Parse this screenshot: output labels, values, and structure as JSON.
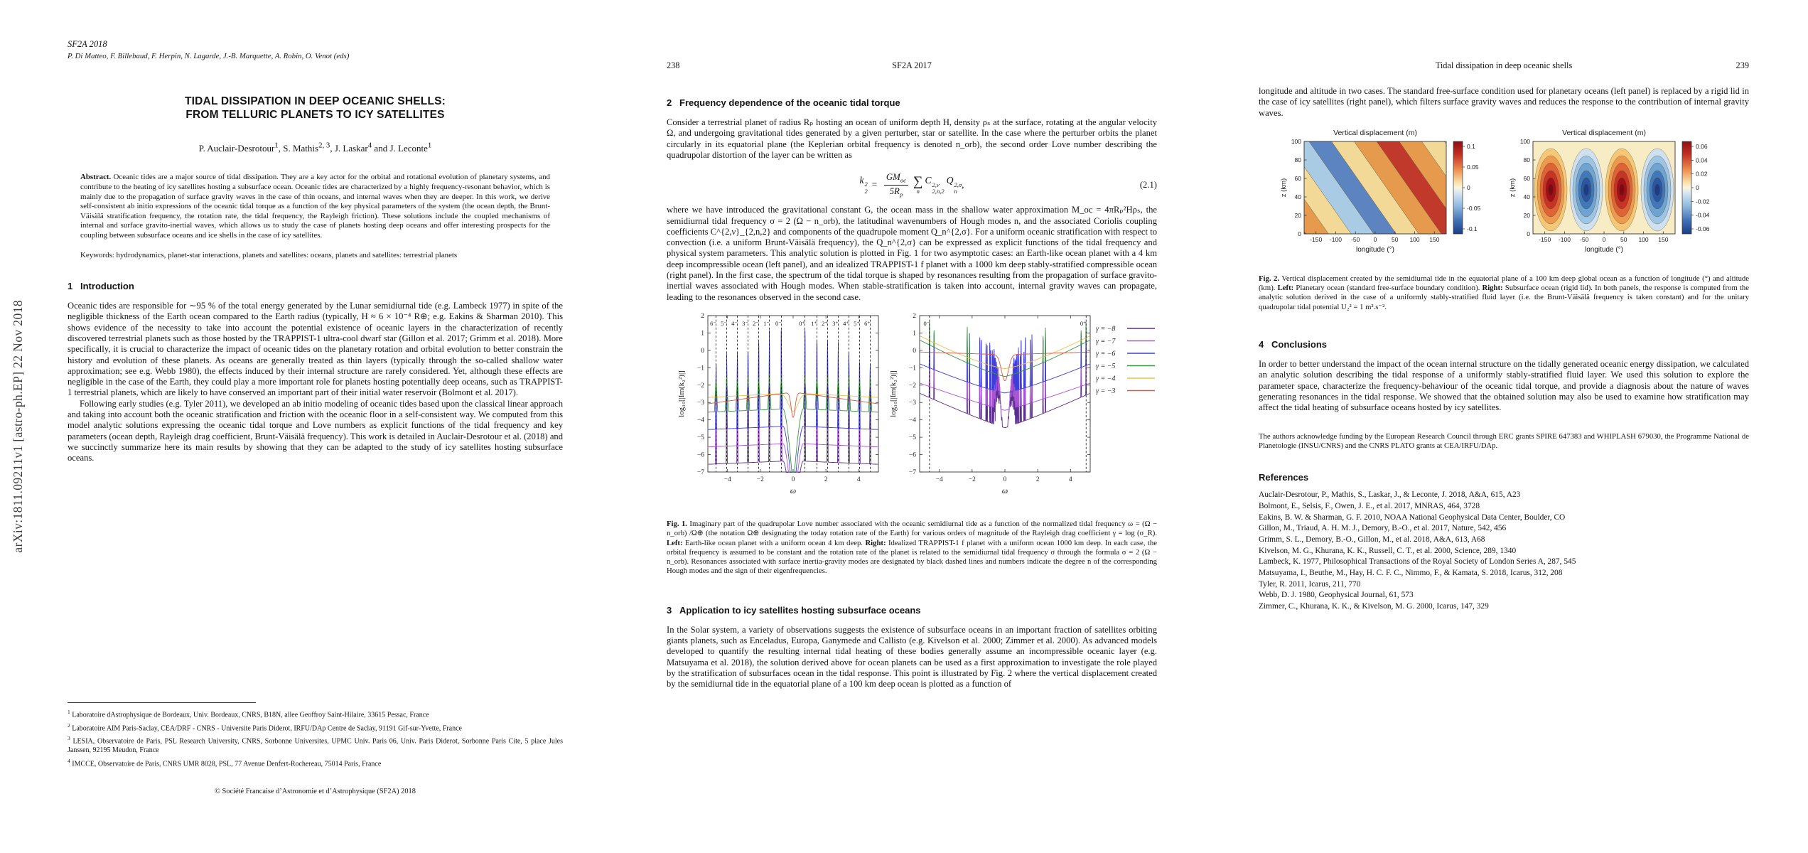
{
  "arxiv_stamp": "arXiv:1811.09211v1  [astro-ph.EP]  22 Nov 2018",
  "page1": {
    "proceedings_line1": "SF2A 2018",
    "proceedings_line2": "P. Di Matteo, F. Billebaud, F. Herpin, N. Lagarde, J.-B. Marquette, A. Robin, O. Venot (eds)",
    "title_line1": "TIDAL DISSIPATION IN DEEP OCEANIC SHELLS:",
    "title_line2": "FROM TELLURIC PLANETS TO ICY SATELLITES",
    "authors_parts": [
      {
        "t": "P. Auclair-Desrotour",
        "s": "1"
      },
      {
        "t": ", S. Mathis",
        "s": "2, 3"
      },
      {
        "t": ", J. Laskar",
        "s": "4"
      },
      {
        "t": " and J. Leconte",
        "s": "1"
      }
    ],
    "abstract_label": "Abstract.",
    "abstract_text": "Oceanic tides are a major source of tidal dissipation. They are a key actor for the orbital and rotational evolution of planetary systems, and contribute to the heating of icy satellites hosting a subsurface ocean. Oceanic tides are characterized by a highly frequency-resonant behavior, which is mainly due to the propagation of surface gravity waves in the case of thin oceans, and internal waves when they are deeper. In this work, we derive self-consistent ab initio expressions of the oceanic tidal torque as a function of the key physical parameters of the system (the ocean depth, the Brunt-Väisälä stratification frequency, the rotation rate, the tidal frequency, the Rayleigh friction). These solutions include the coupled mechanisms of internal and surface gravito-inertial waves, which allows us to study the case of planets hosting deep oceans and offer interesting prospects for the coupling between subsurface oceans and ice shells in the case of icy satellites.",
    "keywords_label": "Keywords:",
    "keywords_text": "hydrodynamics, planet-star interactions, planets and satellites: oceans, planets and satellites: terrestrial planets",
    "section1": {
      "num": "1",
      "text": "Introduction"
    },
    "intro_para1": "Oceanic tides are responsible for ∼95 % of the total energy generated by the Lunar semidiurnal tide (e.g. Lambeck 1977) in spite of the negligible thickness of the Earth ocean compared to the Earth radius (typically, H ≈ 6 × 10⁻⁴ R⊕; e.g. Eakins & Sharman 2010). This shows evidence of the necessity to take into account the potential existence of oceanic layers in the characterization of recently discovered terrestrial planets such as those hosted by the TRAPPIST-1 ultra-cool dwarf star (Gillon et al. 2017; Grimm et al. 2018). More specifically, it is crucial to characterize the impact of oceanic tides on the planetary rotation and orbital evolution to better constrain the history and evolution of these planets. As oceans are generally treated as thin layers (typically through the so-called shallow water approximation; see e.g. Webb 1980), the effects induced by their internal structure are rarely considered. Yet, although these effects are negligible in the case of the Earth, they could play a more important role for planets hosting potentially deep oceans, such as TRAPPIST-1 terrestrial planets, which are likely to have conserved an important part of their initial water reservoir (Bolmont et al. 2017).",
    "intro_para2": "Following early studies (e.g. Tyler 2011), we developed an ab initio modeling of oceanic tides based upon the classical linear approach and taking into account both the oceanic stratification and friction with the oceanic floor in a self-consistent way. We computed from this model analytic solutions expressing the oceanic tidal torque and Love numbers as explicit functions of the tidal frequency and key parameters (ocean depth, Rayleigh drag coefficient, Brunt-Väisälä frequency). This work is detailed in Auclair-Desrotour et al. (2018) and we succinctly summarize here its main results by showing that they can be adapted to the study of icy satellites hosting subsurface oceans.",
    "footnotes": [
      {
        "num": "1",
        "text": "Laboratoire dAstrophysique de Bordeaux, Univ. Bordeaux, CNRS, B18N, allee Geoffroy Saint-Hilaire, 33615 Pessac, France"
      },
      {
        "num": "2",
        "text": "Laboratoire AIM Paris-Saclay, CEA/DRF - CNRS - Universite Paris Diderot, IRFU/DAp Centre de Saclay, 91191 Gif-sur-Yvette, France"
      },
      {
        "num": "3",
        "text": "LESIA, Observatoire de Paris, PSL Research University, CNRS, Sorbonne Universites, UPMC Univ. Paris 06, Univ. Paris Diderot, Sorbonne Paris Cite, 5 place Jules Janssen, 92195 Meudon, France"
      },
      {
        "num": "4",
        "text": "IMCCE, Observatoire de Paris, CNRS UMR 8028, PSL, 77 Avenue Denfert-Rochereau, 75014 Paris, France"
      }
    ],
    "copyright": "© Société Francaise d’Astronomie et d’Astrophysique (SF2A) 2018"
  },
  "page2": {
    "page_number": "238",
    "running_head": "SF2A 2017",
    "section2": {
      "num": "2",
      "text": "Frequency dependence of the oceanic tidal torque"
    },
    "para1": "Consider a terrestrial planet of radius Rₚ hosting an ocean of uniform depth H, density ρₛ at the surface, rotating at the angular velocity Ω, and undergoing gravitational tides generated by a given perturber, star or satellite. In the case where the perturber orbits the planet circularly in its equatorial plane (the Keplerian orbital frequency is denoted n_orb), the second order Love number describing the quadrupolar distortion of the layer can be written as",
    "equation": {
      "k": "k",
      "k_sup": "2",
      "k_sub": "2",
      "equals": "=",
      "num_main": "GM",
      "num_sub": "oc",
      "den_main": "5R",
      "den_sub": "p",
      "sigma": "∑",
      "sigma_under": "n",
      "C": "C",
      "C_sup": "2,ν",
      "C_sub": "2,n,2",
      "Q": "Q",
      "Q_sup": "2,σ",
      "Q_sub": "n",
      "tail": ",",
      "number": "(2.1)"
    },
    "para2": "where we have introduced the gravitational constant G, the ocean mass in the shallow water approximation M_oc = 4πRₚ²Hρₛ, the semidiurnal tidal frequency σ = 2 (Ω − n_orb), the latitudinal wavenumbers of Hough modes n, and the associated Coriolis coupling coefficients C^{2,ν}_{2,n,2} and components of the quadrupole moment Q_n^{2,σ}. For a uniform oceanic stratification with respect to convection (i.e. a uniform Brunt-Väisälä frequency), the Q_n^{2,σ} can be expressed as explicit functions of the tidal frequency and physical system parameters. This analytic solution is plotted in Fig. 1 for two asymptotic cases: an Earth-like ocean planet with a 4 km deep incompressible ocean (left panel), and an idealized TRAPPIST-1 f planet with a 1000 km deep stably-stratified compressible ocean (right panel). In the first case, the spectrum of the tidal torque is shaped by resonances resulting from the propagation of surface gravito-inertial waves associated with Hough modes. When stable-stratification is taken into account, internal gravity waves can propagate, leading to the resonances observed in the second case.",
    "fig1_caption": {
      "label": "Fig. 1.",
      "p1": "Imaginary part of the quadrupolar Love number associated with the oceanic semidiurnal tide as a function of the normalized tidal frequency ω = (Ω − n_orb) /Ω⊕ (the notation Ω⊕ designating the today rotation rate of the Earth) for various orders of magnitude of the Rayleigh drag coefficient γ = log (σ_R). ",
      "left_label": "Left:",
      "p2": " Earth-like ocean planet with a uniform ocean 4 km deep. ",
      "right_label": "Right:",
      "p3": " Idealized TRAPPIST-1 f planet with a uniform ocean 1000 km deep. In each case, the orbital frequency is assumed to be constant and the rotation rate of the planet is related to the semidiurnal tidal frequency σ through the formula σ = 2 (Ω − n_orb). Resonances associated with surface inertia-gravity modes are designated by black dashed lines and numbers indicate the degree n of the corresponding Hough modes and the sign of their eigenfrequencies."
    },
    "section3": {
      "num": "3",
      "text": "Application to icy satellites hosting subsurface oceans"
    },
    "para3": "In the Solar system, a variety of observations suggests the existence of subsurface oceans in an important fraction of satellites orbiting giants planets, such as Enceladus, Europa, Ganymede and Callisto (e.g. Kivelson et al. 2000; Zimmer et al. 2000). As advanced models developed to quantify the resulting internal tidal heating of these bodies generally assume an incompressible oceanic layer (e.g. Matsuyama et al. 2018), the solution derived above for ocean planets can be used as a first approximation to investigate the role played by the stratification of subsurfaces ocean in the tidal response. This point is illustrated by Fig. 2 where the vertical displacement created by the semidiurnal tide in the equatorial plane of a 100 km deep ocean is plotted as a function of"
  },
  "page3": {
    "running_head": "Tidal dissipation in deep oceanic shells",
    "page_number": "239",
    "para1": "longitude and altitude in two cases. The standard free-surface condition used for planetary oceans (left panel) is replaced by a rigid lid in the case of icy satellites (right panel), which filters surface gravity waves and reduces the response to the contribution of internal gravity waves.",
    "fig2_caption": {
      "label": "Fig. 2.",
      "p1": "Vertical displacement created by the semidiurnal tide in the equatorial plane of a 100 km deep global ocean as a function of longitude (°) and altitude (km). ",
      "left_label": "Left:",
      "p2": " Planetary ocean (standard free-surface boundary condition). ",
      "right_label": "Right:",
      "p3": " Subsurface ocean (rigid lid). In both panels, the response is computed from the analytic solution derived in the case of a uniformly stably-stratified fluid layer (i.e. the Brunt-Väisälä frequency is taken constant) and for the unitary quadrupolar tidal potential U₂² = 1 m².s⁻²."
    },
    "section4": {
      "num": "4",
      "text": "Conclusions"
    },
    "conclusions": "In order to better understand the impact of the ocean internal structure on the tidally generated oceanic energy dissipation, we calculated an analytic solution describing the tidal response of a uniformly stably-stratified fluid layer. We used this solution to explore the parameter space, characterize the frequency-behaviour of the oceanic tidal torque, and provide a diagnosis about the nature of waves generating resonances in the tidal response. We showed that the obtained solution may also be used to examine how stratification may affect the tidal heating of subsurface oceans hosted by icy satellites.",
    "acknowledgments": "The authors acknowledge funding by the European Research Council through ERC grants SPIRE 647383 and WHIPLASH 679030, the Programme National de Planetologie (INSU/CNRS) and the CNRS PLATO grants at CEA/IRFU/DAp.",
    "references_heading": "References",
    "references": [
      "Auclair-Desrotour, P., Mathis, S., Laskar, J., & Leconte, J. 2018, A&A, 615, A23",
      "Bolmont, E., Selsis, F., Owen, J. E., et al. 2017, MNRAS, 464, 3728",
      "Eakins, B. W. & Sharman, G. F. 2010, NOAA National Geophysical Data Center, Boulder, CO",
      "Gillon, M., Triaud, A. H. M. J., Demory, B.-O., et al. 2017, Nature, 542, 456",
      "Grimm, S. L., Demory, B.-O., Gillon, M., et al. 2018, A&A, 613, A68",
      "Kivelson, M. G., Khurana, K. K., Russell, C. T., et al. 2000, Science, 289, 1340",
      "Lambeck, K. 1977, Philosophical Transactions of the Royal Society of London Series A, 287, 545",
      "Matsuyama, I., Beuthe, M., Hay, H. C. F. C., Nimmo, F., & Kamata, S. 2018, Icarus, 312, 208",
      "Tyler, R. 2011, Icarus, 211, 770",
      "Webb, D. J. 1980, Geophysical Journal, 61, 573",
      "Zimmer, C., Khurana, K. K., & Kivelson, M. G. 2000, Icarus, 147, 329"
    ]
  },
  "figures": {
    "fig1": {
      "type": "line",
      "ylabel": "log₁₀[|Im(k₂²)|]",
      "xlabel": "ω",
      "ylim": [
        -7,
        2
      ],
      "xlim": [
        -5.2,
        5.2
      ],
      "ytick_vals": [
        2,
        1,
        0,
        -1,
        -2,
        -3,
        -4,
        -5,
        -6,
        -7
      ],
      "xtick_vals": [
        -4,
        -2,
        0,
        2,
        4
      ],
      "legend": [
        {
          "label": "γ = −8",
          "gamma": -8,
          "color": "#5b2d8e"
        },
        {
          "label": "γ = −7",
          "gamma": -7,
          "color": "#a855d6"
        },
        {
          "label": "γ = −6",
          "gamma": -6,
          "color": "#3b3fd8"
        },
        {
          "label": "γ = −5",
          "gamma": -5,
          "color": "#3d9440"
        },
        {
          "label": "γ = −4",
          "gamma": -4,
          "color": "#eec14b"
        },
        {
          "label": "γ = −3",
          "gamma": -3,
          "color": "#e05747"
        }
      ],
      "panelA": {
        "description": "Earth-like ocean planet, uniform ocean 4 km deep: resonances of surface gravito-inertial Hough modes",
        "modes": [
          {
            "label": "6⁻",
            "omega": -4.7
          },
          {
            "label": "5⁻",
            "omega": -4.05
          },
          {
            "label": "4⁻",
            "omega": -3.4
          },
          {
            "label": "3⁻",
            "omega": -2.75
          },
          {
            "label": "2⁻",
            "omega": -2.1
          },
          {
            "label": "1⁻",
            "omega": -1.45
          },
          {
            "label": "0⁻",
            "omega": -0.72
          },
          {
            "label": "0⁺",
            "omega": 0.72
          },
          {
            "label": "1⁺",
            "omega": 1.45
          },
          {
            "label": "2⁺",
            "omega": 2.1
          },
          {
            "label": "3⁺",
            "omega": 2.75
          },
          {
            "label": "4⁺",
            "omega": 3.4
          },
          {
            "label": "5⁺",
            "omega": 4.05
          },
          {
            "label": "6⁺",
            "omega": 4.7
          }
        ]
      },
      "panelB": {
        "description": "Idealized TRAPPIST-1 f planet, uniform ocean 1000 km deep: dense internal gravity wave resonances",
        "modes": [
          {
            "label": "0⁻",
            "omega": -4.6
          },
          {
            "label": "0⁺",
            "omega": 4.95
          }
        ]
      }
    },
    "fig2": {
      "type": "heatmap",
      "title": "Vertical displacement (m)",
      "ylabel": "z (km)",
      "xlabel": "longitude (°)",
      "ytick_vals": [
        0,
        20,
        40,
        60,
        80,
        100
      ],
      "xtick_vals": [
        -150,
        -100,
        -50,
        0,
        50,
        100,
        150
      ],
      "left_panel": {
        "description": "Planetary ocean, free surface: tilted internal-wave rays",
        "cbar_ticks": [
          "0.1",
          "0.05",
          "0",
          "-0.05",
          "-0.1"
        ]
      },
      "right_panel": {
        "description": "Subsurface ocean, rigid lid: cellular pattern of internal gravity waves",
        "cbar_ticks": [
          "0.06",
          "0.04",
          "0.02",
          "0",
          "-0.02",
          "-0.04",
          "-0.06"
        ]
      }
    }
  }
}
